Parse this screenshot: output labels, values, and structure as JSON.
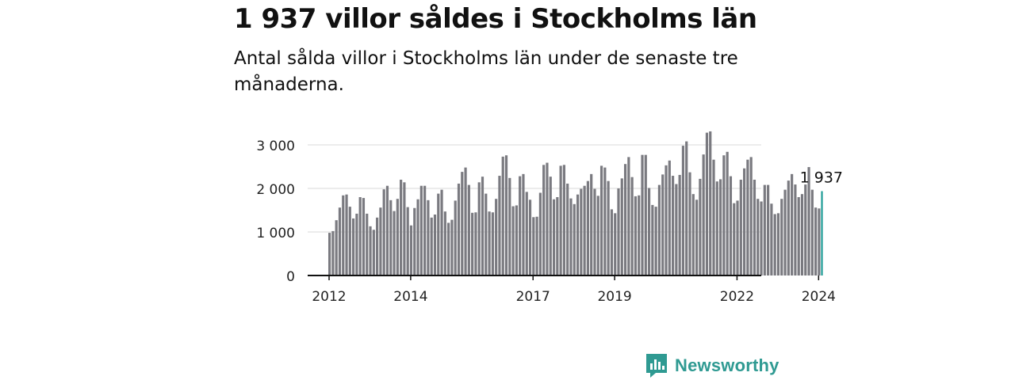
{
  "header": {
    "title": "1 937 villor såldes i Stockholms län",
    "subtitle": "Antal sålda villor i Stockholms län under de senaste tre månaderna."
  },
  "brand": {
    "name": "Newsworthy",
    "icon": "chart-bubble-icon",
    "color": "#2f9a92"
  },
  "chart_data": {
    "type": "bar",
    "title": "1 937 villor såldes i Stockholms län",
    "subtitle": "Antal sålda villor i Stockholms län under de senaste tre månaderna.",
    "xlabel": "",
    "ylabel": "",
    "x_start": "2012-01",
    "x_end": "2024-04",
    "ylim": [
      0,
      3300
    ],
    "y_ticks": [
      0,
      1000,
      2000,
      3000
    ],
    "y_tick_labels": [
      "0",
      "1 000",
      "2 000",
      "3 000"
    ],
    "x_tick_labels": [
      {
        "label": "2012",
        "month_index": 0
      },
      {
        "label": "2014",
        "month_index": 24
      },
      {
        "label": "2017",
        "month_index": 60
      },
      {
        "label": "2019",
        "month_index": 84
      },
      {
        "label": "2022",
        "month_index": 120
      },
      {
        "label": "2024",
        "month_index": 144
      }
    ],
    "grid": true,
    "bar_color": "#7a7a80",
    "highlight_color": "#1f9d97",
    "highlight_label": "1 937",
    "values": [
      980,
      1020,
      1270,
      1560,
      1840,
      1860,
      1580,
      1310,
      1420,
      1800,
      1780,
      1420,
      1130,
      1050,
      1330,
      1560,
      1980,
      2060,
      1730,
      1480,
      1760,
      2200,
      2140,
      1570,
      1150,
      1550,
      1750,
      2060,
      2060,
      1730,
      1330,
      1400,
      1880,
      1970,
      1470,
      1210,
      1280,
      1720,
      2110,
      2380,
      2480,
      2080,
      1440,
      1450,
      2140,
      2270,
      1880,
      1470,
      1450,
      1760,
      2290,
      2730,
      2760,
      2240,
      1590,
      1610,
      2280,
      2330,
      1920,
      1740,
      1340,
      1350,
      1900,
      2540,
      2590,
      2270,
      1750,
      1800,
      2520,
      2540,
      2110,
      1770,
      1640,
      1860,
      1990,
      2060,
      2170,
      2330,
      1990,
      1830,
      2520,
      2480,
      2170,
      1520,
      1430,
      2000,
      2230,
      2560,
      2720,
      2260,
      1820,
      1840,
      2770,
      2770,
      2010,
      1620,
      1580,
      2080,
      2320,
      2530,
      2640,
      2290,
      2100,
      2310,
      2980,
      3080,
      2370,
      1870,
      1740,
      2220,
      2780,
      3280,
      3310,
      2660,
      2160,
      2210,
      2760,
      2840,
      2280,
      1660,
      1720,
      2200,
      2460,
      2660,
      2720,
      2200,
      1760,
      1700,
      2080,
      2080,
      1650,
      1410,
      1430,
      1760,
      1970,
      2180,
      2330,
      2090,
      1800,
      1870,
      2090,
      2490,
      1970,
      1560,
      1540,
      1937
    ]
  }
}
